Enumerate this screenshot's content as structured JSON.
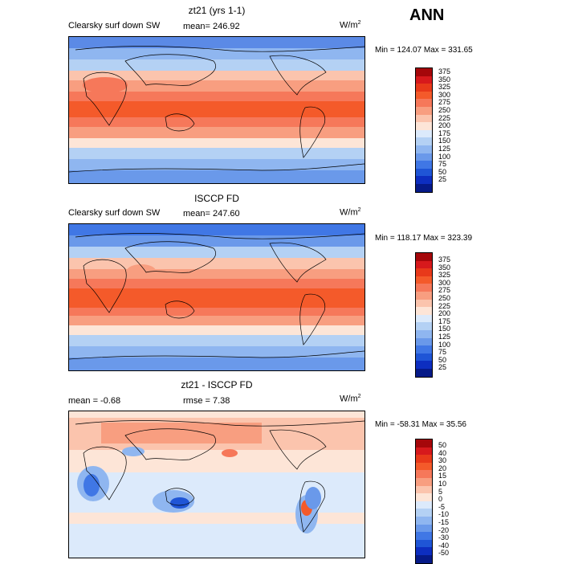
{
  "season": "ANN",
  "panels": [
    {
      "title": "zt21 (yrs 1-1)",
      "variable": "Clearsky surf down SW",
      "stat_text": "mean= 246.92",
      "units": "W/m",
      "units_exp": "2",
      "minmax": "Min = 124.07 Max = 331.65",
      "colorbar_labels": [
        "375",
        "350",
        "325",
        "300",
        "275",
        "250",
        "225",
        "200",
        "175",
        "150",
        "125",
        "100",
        "75",
        "50",
        "25"
      ]
    },
    {
      "title": "ISCCP FD",
      "variable": "Clearsky surf down SW",
      "stat_text": "mean= 247.60",
      "units": "W/m",
      "units_exp": "2",
      "minmax": "Min = 118.17 Max = 323.39",
      "colorbar_labels": [
        "375",
        "350",
        "325",
        "300",
        "275",
        "250",
        "225",
        "200",
        "175",
        "150",
        "125",
        "100",
        "75",
        "50",
        "25"
      ]
    },
    {
      "title": "zt21 - ISCCP FD",
      "mean_text": "mean =   -0.68",
      "rmse_text": "rmse =    7.38",
      "units": "W/m",
      "units_exp": "2",
      "minmax": "Min = -58.31 Max =  35.56",
      "colorbar_labels": [
        "50",
        "40",
        "30",
        "20",
        "15",
        "10",
        "5",
        "0",
        "-5",
        "-10",
        "-15",
        "-20",
        "-30",
        "-40",
        "-50"
      ]
    }
  ],
  "colors": {
    "abs_scale": [
      "#a5070a",
      "#d7191c",
      "#e8391a",
      "#f45a2a",
      "#f6785a",
      "#f89e80",
      "#fbc4ad",
      "#fde5d7",
      "#dceafb",
      "#b4d1f4",
      "#8fb6f0",
      "#6a99ea",
      "#4077e5",
      "#1f55d6",
      "#0d2ec0",
      "#061a88"
    ],
    "diff_scale": [
      "#a5070a",
      "#d7191c",
      "#e8391a",
      "#f45a2a",
      "#f6785a",
      "#f89e80",
      "#fbc4ad",
      "#fde5d7",
      "#dceafb",
      "#b4d1f4",
      "#8fb6f0",
      "#6a99ea",
      "#4077e5",
      "#1f55d6",
      "#0d2ec0",
      "#061a88"
    ]
  }
}
